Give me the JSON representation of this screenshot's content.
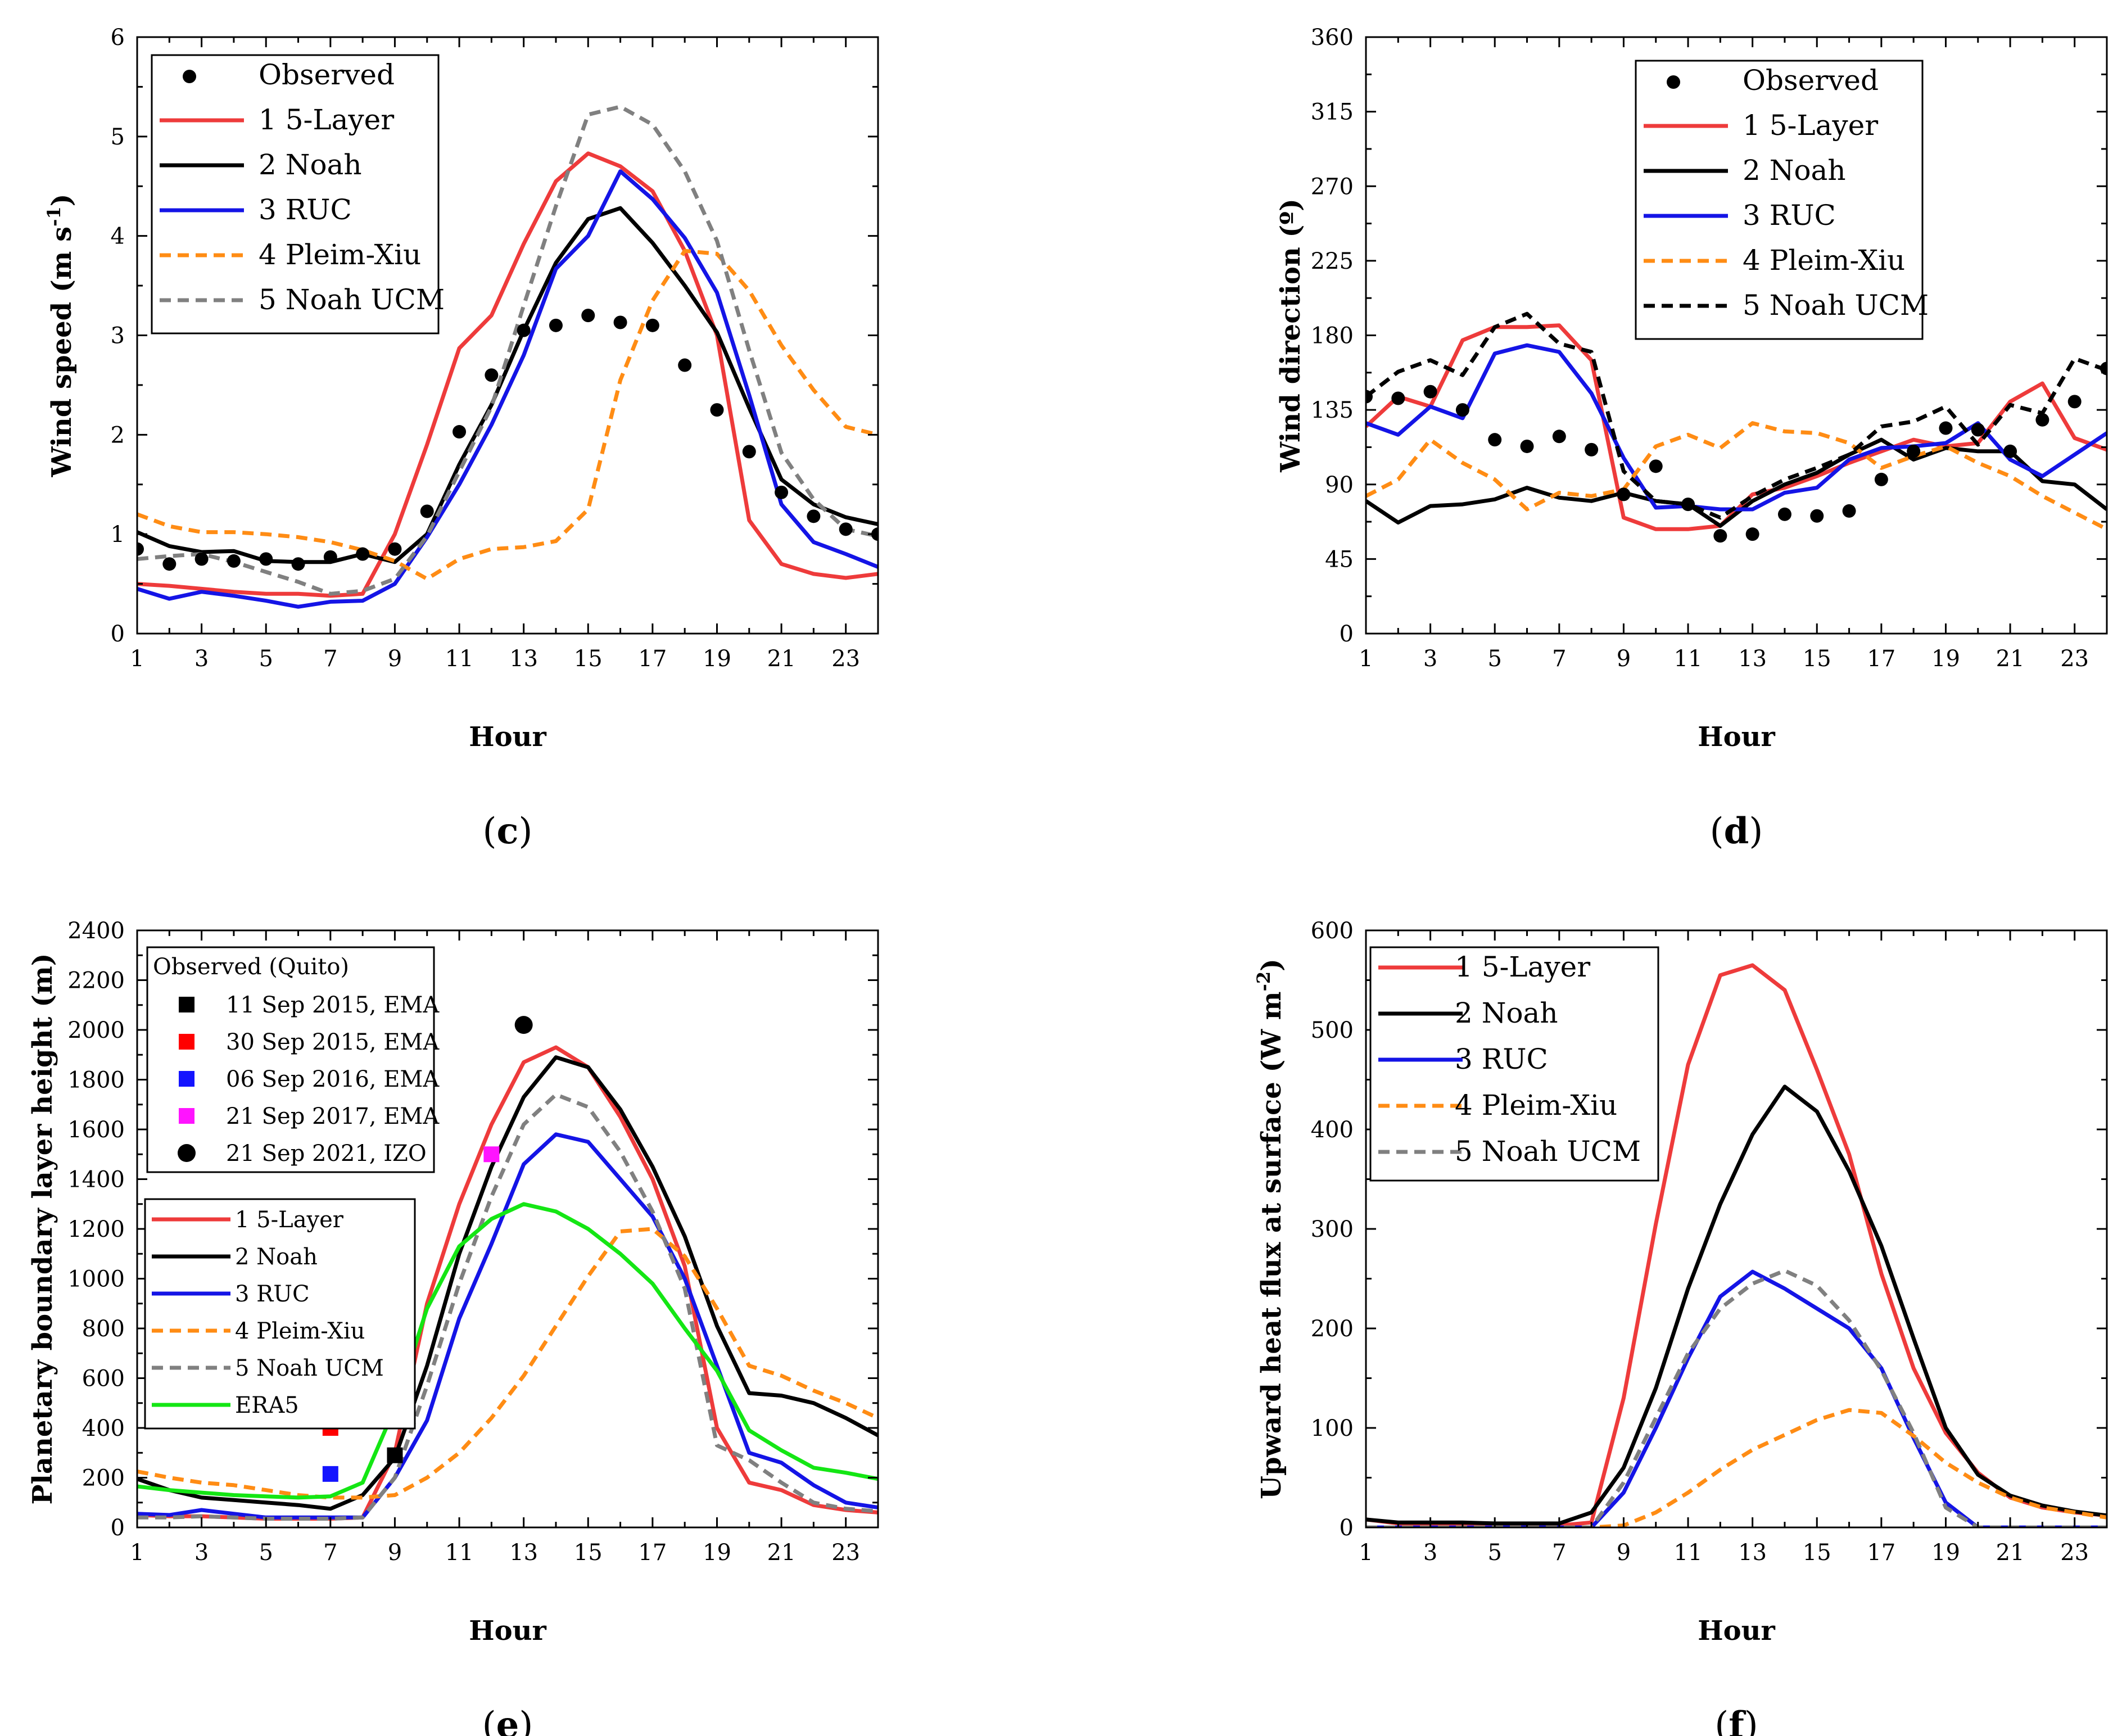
{
  "chart_data": [
    {
      "id": "c",
      "type": "line",
      "panel_label": "(c)",
      "panel_letter": "c",
      "xlabel": "Hour",
      "ylabel": "Wind speed (m s",
      "ylabel_sup": "-1",
      "ylabel_tail": ")",
      "xlim": [
        1,
        24
      ],
      "ylim": [
        0,
        6
      ],
      "xticks": [
        1,
        3,
        5,
        7,
        9,
        11,
        13,
        15,
        17,
        19,
        21,
        23
      ],
      "yticks": [
        0,
        1,
        2,
        3,
        4,
        5,
        6
      ],
      "legend_position": "top-left",
      "observed": {
        "name": "Observed",
        "x": [
          1,
          2,
          3,
          4,
          5,
          6,
          7,
          8,
          9,
          10,
          11,
          12,
          13,
          14,
          15,
          16,
          17,
          18,
          19,
          20,
          21,
          22,
          23,
          24
        ],
        "y": [
          0.85,
          0.7,
          0.75,
          0.73,
          0.75,
          0.7,
          0.77,
          0.8,
          0.85,
          1.23,
          2.03,
          2.6,
          3.05,
          3.1,
          3.2,
          3.13,
          3.1,
          2.7,
          2.25,
          1.83,
          1.42,
          1.18,
          1.05,
          1.0
        ]
      },
      "series": [
        {
          "name": "1 5-Layer",
          "color": "#ee3b3b",
          "dash": "solid",
          "values": [
            0.5,
            0.48,
            0.45,
            0.42,
            0.4,
            0.4,
            0.38,
            0.4,
            1.0,
            1.9,
            2.87,
            3.2,
            3.92,
            4.55,
            4.83,
            4.7,
            4.45,
            3.85,
            3.0,
            1.14,
            0.7,
            0.6,
            0.56,
            0.6
          ]
        },
        {
          "name": "2 Noah",
          "color": "#000000",
          "dash": "solid",
          "values": [
            1.02,
            0.88,
            0.82,
            0.83,
            0.73,
            0.72,
            0.72,
            0.8,
            0.72,
            1.0,
            1.7,
            2.3,
            3.05,
            3.73,
            4.17,
            4.28,
            3.93,
            3.5,
            3.03,
            2.27,
            1.55,
            1.3,
            1.17,
            1.1
          ]
        },
        {
          "name": "3 RUC",
          "color": "#1414e6",
          "dash": "solid",
          "values": [
            0.45,
            0.35,
            0.42,
            0.38,
            0.33,
            0.27,
            0.32,
            0.33,
            0.5,
            0.97,
            1.5,
            2.1,
            2.8,
            3.67,
            4.0,
            4.65,
            4.37,
            3.98,
            3.43,
            2.4,
            1.3,
            0.92,
            0.8,
            0.67
          ]
        },
        {
          "name": "4 Pleim-Xiu",
          "color": "#ff8c14",
          "dash": "dash",
          "values": [
            1.2,
            1.08,
            1.02,
            1.02,
            1.0,
            0.97,
            0.92,
            0.84,
            0.73,
            0.55,
            0.75,
            0.85,
            0.87,
            0.93,
            1.25,
            2.55,
            3.35,
            3.85,
            3.82,
            3.45,
            2.9,
            2.45,
            2.08,
            2.0
          ]
        },
        {
          "name": "5 Noah UCM",
          "color": "#808080",
          "dash": "dash",
          "values": [
            0.75,
            0.78,
            0.8,
            0.72,
            0.62,
            0.52,
            0.4,
            0.43,
            0.55,
            0.98,
            1.63,
            2.28,
            3.3,
            4.3,
            5.22,
            5.3,
            5.12,
            4.65,
            3.95,
            2.85,
            1.82,
            1.35,
            1.05,
            0.98
          ]
        }
      ]
    },
    {
      "id": "d",
      "type": "line",
      "panel_label": "(d)",
      "panel_letter": "d",
      "xlabel": "Hour",
      "ylabel": "Wind direction (º)",
      "xlim": [
        1,
        24
      ],
      "ylim": [
        0,
        360
      ],
      "xticks": [
        1,
        3,
        5,
        7,
        9,
        11,
        13,
        15,
        17,
        19,
        21,
        23
      ],
      "yticks": [
        0,
        45,
        90,
        135,
        180,
        225,
        270,
        315,
        360
      ],
      "legend_position": "top-center",
      "observed": {
        "name": "Observed",
        "x": [
          1,
          2,
          3,
          4,
          5,
          6,
          7,
          8,
          9,
          10,
          11,
          12,
          13,
          14,
          15,
          16,
          17,
          18,
          19,
          20,
          21,
          22,
          23,
          24
        ],
        "y": [
          143,
          142,
          146,
          135,
          117,
          113,
          119,
          111,
          84,
          101,
          78,
          59,
          60,
          72,
          71,
          74,
          93,
          110,
          124,
          123,
          110,
          129,
          140,
          160
        ]
      },
      "series": [
        {
          "name": "1 5-Layer",
          "color": "#ee3b3b",
          "dash": "solid",
          "values": [
            125,
            143,
            137,
            177,
            185,
            185,
            186,
            165,
            70,
            63,
            63,
            65,
            84,
            88,
            95,
            103,
            110,
            117,
            113,
            115,
            140,
            151,
            118,
            111
          ]
        },
        {
          "name": "2 Noah",
          "color": "#000000",
          "dash": "solid",
          "values": [
            80,
            67,
            77,
            78,
            81,
            88,
            82,
            80,
            85,
            80,
            78,
            65,
            80,
            90,
            97,
            108,
            117,
            105,
            112,
            110,
            110,
            92,
            90,
            75
          ]
        },
        {
          "name": "3 RUC",
          "color": "#1414e6",
          "dash": "solid",
          "values": [
            127,
            120,
            137,
            130,
            169,
            174,
            170,
            145,
            106,
            76,
            77,
            75,
            75,
            85,
            88,
            105,
            112,
            113,
            115,
            127,
            105,
            95,
            108,
            121
          ]
        },
        {
          "name": "4 Pleim-Xiu",
          "color": "#ff8c14",
          "dash": "dash",
          "values": [
            83,
            93,
            117,
            103,
            93,
            75,
            85,
            83,
            87,
            113,
            120,
            112,
            127,
            122,
            121,
            115,
            100,
            107,
            113,
            103,
            95,
            83,
            73,
            63
          ]
        },
        {
          "name": "5 Noah UCM",
          "color": "#000000",
          "dash": "dash",
          "values": [
            143,
            158,
            165,
            156,
            185,
            193,
            175,
            170,
            98,
            80,
            78,
            70,
            83,
            93,
            100,
            108,
            125,
            128,
            137,
            114,
            138,
            133,
            166,
            159
          ]
        }
      ]
    },
    {
      "id": "e",
      "type": "line",
      "panel_label": "(e)",
      "panel_letter": "e",
      "xlabel": "Hour",
      "ylabel": "Planetary boundary layer height (m)",
      "xlim": [
        1,
        24
      ],
      "ylim": [
        0,
        2400
      ],
      "xticks": [
        1,
        3,
        5,
        7,
        9,
        11,
        13,
        15,
        17,
        19,
        21,
        23
      ],
      "yticks": [
        0,
        200,
        400,
        600,
        800,
        1000,
        1200,
        1400,
        1600,
        1800,
        2000,
        2200,
        2400
      ],
      "legend_position": "top-left",
      "observed_title": "Observed (Quito)",
      "observed_points": [
        {
          "name": "11 Sep 2015, EMA",
          "marker": "square",
          "color": "#000000",
          "x": 9,
          "y": 290
        },
        {
          "name": "30 Sep 2015, EMA",
          "marker": "square",
          "color": "#ff0000",
          "x": 7,
          "y": 400
        },
        {
          "name": "06 Sep 2016, EMA",
          "marker": "square",
          "color": "#1414ff",
          "x": 7,
          "y": 215
        },
        {
          "name": "21 Sep 2017, EMA",
          "marker": "square",
          "color": "#ff14ff",
          "x": 12,
          "y": 1500
        },
        {
          "name": "21 Sep 2021, IZO",
          "marker": "circle",
          "color": "#000000",
          "x": 13,
          "y": 2020
        }
      ],
      "series": [
        {
          "name": "1 5-Layer",
          "color": "#ee3b3b",
          "dash": "solid",
          "values": [
            50,
            45,
            45,
            40,
            35,
            35,
            35,
            40,
            300,
            900,
            1300,
            1620,
            1870,
            1930,
            1850,
            1650,
            1400,
            1050,
            400,
            180,
            150,
            90,
            70,
            60
          ]
        },
        {
          "name": "2 Noah",
          "color": "#000000",
          "dash": "solid",
          "values": [
            195,
            150,
            120,
            110,
            100,
            90,
            75,
            130,
            280,
            650,
            1100,
            1450,
            1730,
            1890,
            1850,
            1680,
            1450,
            1170,
            810,
            540,
            530,
            500,
            440,
            370
          ]
        },
        {
          "name": "3 RUC",
          "color": "#1414e6",
          "dash": "solid",
          "values": [
            55,
            50,
            70,
            55,
            40,
            40,
            40,
            40,
            200,
            430,
            840,
            1140,
            1460,
            1580,
            1550,
            1400,
            1250,
            1000,
            650,
            300,
            260,
            170,
            100,
            80
          ]
        },
        {
          "name": "4 Pleim-Xiu",
          "color": "#ff8c14",
          "dash": "dash",
          "values": [
            225,
            200,
            180,
            170,
            150,
            130,
            120,
            120,
            130,
            200,
            300,
            440,
            610,
            810,
            1010,
            1190,
            1200,
            1090,
            880,
            650,
            610,
            550,
            500,
            440
          ]
        },
        {
          "name": "5 Noah UCM",
          "color": "#808080",
          "dash": "dash",
          "values": [
            40,
            40,
            45,
            40,
            35,
            35,
            35,
            40,
            200,
            570,
            980,
            1330,
            1620,
            1740,
            1690,
            1510,
            1270,
            960,
            330,
            270,
            180,
            100,
            75,
            65
          ]
        },
        {
          "name": "ERA5",
          "color": "#14e614",
          "dash": "solid",
          "values": [
            165,
            150,
            140,
            130,
            125,
            120,
            125,
            180,
            480,
            880,
            1130,
            1240,
            1300,
            1270,
            1200,
            1100,
            980,
            800,
            630,
            390,
            310,
            240,
            220,
            195
          ]
        }
      ]
    },
    {
      "id": "f",
      "type": "line",
      "panel_label": "(f)",
      "panel_letter": "f",
      "xlabel": "Hour",
      "ylabel": "Upward heat flux at surface (W m",
      "ylabel_sup": "-2",
      "ylabel_tail": ")",
      "xlim": [
        1,
        24
      ],
      "ylim": [
        0,
        600
      ],
      "xticks": [
        1,
        3,
        5,
        7,
        9,
        11,
        13,
        15,
        17,
        19,
        21,
        23
      ],
      "yticks": [
        0,
        100,
        200,
        300,
        400,
        500,
        600
      ],
      "legend_position": "top-left",
      "series": [
        {
          "name": "1 5-Layer",
          "color": "#ee3b3b",
          "dash": "solid",
          "values": [
            8,
            4,
            3,
            3,
            3,
            2,
            2,
            5,
            130,
            305,
            465,
            555,
            565,
            540,
            460,
            375,
            255,
            160,
            95,
            55,
            30,
            20,
            15,
            12
          ]
        },
        {
          "name": "2 Noah",
          "color": "#000000",
          "dash": "solid",
          "values": [
            8,
            5,
            5,
            5,
            4,
            4,
            4,
            15,
            60,
            140,
            240,
            325,
            395,
            443,
            418,
            358,
            283,
            190,
            100,
            53,
            32,
            22,
            16,
            12
          ]
        },
        {
          "name": "3 RUC",
          "color": "#1414e6",
          "dash": "solid",
          "values": [
            0,
            0,
            0,
            0,
            0,
            0,
            0,
            0,
            35,
            100,
            170,
            232,
            257,
            240,
            220,
            200,
            160,
            90,
            25,
            0,
            0,
            0,
            0,
            0
          ]
        },
        {
          "name": "4 Pleim-Xiu",
          "color": "#ff8c14",
          "dash": "dash",
          "values": [
            0,
            0,
            0,
            0,
            0,
            0,
            0,
            0,
            2,
            15,
            35,
            58,
            78,
            93,
            108,
            118,
            115,
            92,
            65,
            45,
            30,
            20,
            15,
            10
          ]
        },
        {
          "name": "5 Noah UCM",
          "color": "#808080",
          "dash": "dash",
          "values": [
            0,
            0,
            0,
            0,
            0,
            0,
            0,
            0,
            45,
            110,
            175,
            220,
            245,
            258,
            243,
            208,
            158,
            95,
            20,
            0,
            0,
            0,
            0,
            0
          ]
        }
      ]
    }
  ]
}
